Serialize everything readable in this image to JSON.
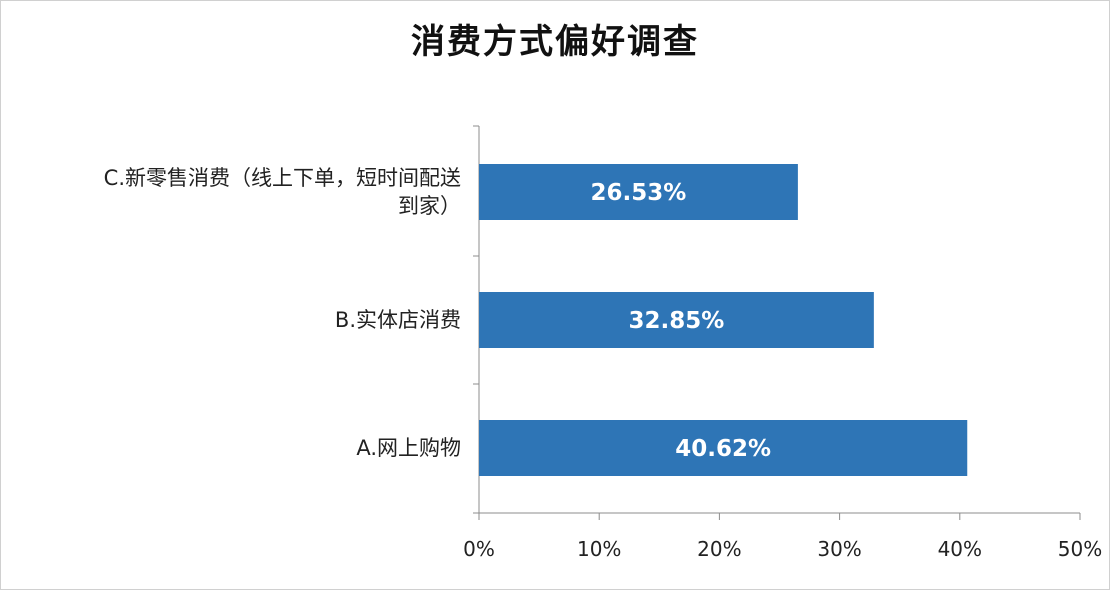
{
  "chart_data": {
    "type": "bar",
    "orientation": "horizontal",
    "title": "消费方式偏好调查",
    "categories": [
      "C.新零售消费（线上下单，短时间配送到家）",
      "B.实体店消费",
      "A.网上购物"
    ],
    "category_lines": [
      [
        "C.新零售消费（线上下单，短时间配送",
        "到家）"
      ],
      [
        "B.实体店消费"
      ],
      [
        "A.网上购物"
      ]
    ],
    "values": [
      26.53,
      32.85,
      40.62
    ],
    "data_labels": [
      "26.53%",
      "32.85%",
      "40.62%"
    ],
    "xlim": [
      0,
      50
    ],
    "xticks": [
      0,
      10,
      20,
      30,
      40,
      50
    ],
    "xtick_labels": [
      "0%",
      "10%",
      "20%",
      "30%",
      "40%",
      "50%"
    ],
    "xlabel": "",
    "ylabel": "",
    "grid": false,
    "legend": "none",
    "bar_color": "#2e75b6"
  }
}
